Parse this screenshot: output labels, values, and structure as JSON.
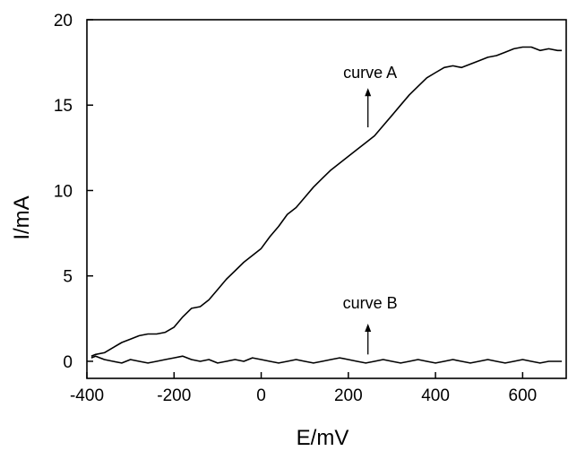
{
  "chart_data": {
    "type": "line",
    "title": "",
    "xlabel": "E/mV",
    "ylabel": "I/mA",
    "xlim": [
      -400,
      700
    ],
    "ylim": [
      -1,
      20
    ],
    "xticks": [
      -400,
      -200,
      0,
      200,
      400,
      600
    ],
    "yticks": [
      0,
      5,
      10,
      15,
      20
    ],
    "grid": false,
    "legend": "none",
    "series": [
      {
        "x": [
          -390,
          -380,
          -360,
          -340,
          -320,
          -300,
          -280,
          -260,
          -240,
          -220,
          -200,
          -180,
          -160,
          -140,
          -120,
          -100,
          -80,
          -60,
          -40,
          -20,
          0,
          20,
          40,
          60,
          80,
          100,
          120,
          140,
          160,
          180,
          200,
          220,
          240,
          260,
          280,
          300,
          320,
          340,
          360,
          380,
          400,
          420,
          440,
          460,
          480,
          500,
          520,
          540,
          560,
          580,
          600,
          620,
          640,
          660,
          680,
          690
        ],
        "y": [
          0.3,
          0.4,
          0.5,
          0.8,
          1.1,
          1.3,
          1.5,
          1.6,
          1.6,
          1.7,
          2.0,
          2.6,
          3.1,
          3.2,
          3.6,
          4.2,
          4.8,
          5.3,
          5.8,
          6.2,
          6.6,
          7.3,
          7.9,
          8.6,
          9.0,
          9.6,
          10.2,
          10.7,
          11.2,
          11.6,
          12.0,
          12.4,
          12.8,
          13.2,
          13.8,
          14.4,
          15.0,
          15.6,
          16.1,
          16.6,
          16.9,
          17.2,
          17.3,
          17.2,
          17.4,
          17.6,
          17.8,
          17.9,
          18.1,
          18.3,
          18.4,
          18.4,
          18.2,
          18.3,
          18.2,
          18.2
        ]
      },
      {
        "x": [
          -390,
          -380,
          -360,
          -340,
          -320,
          -300,
          -280,
          -260,
          -240,
          -220,
          -200,
          -180,
          -160,
          -140,
          -120,
          -100,
          -80,
          -60,
          -40,
          -20,
          0,
          20,
          40,
          60,
          80,
          100,
          120,
          140,
          160,
          180,
          200,
          220,
          240,
          260,
          280,
          300,
          320,
          340,
          360,
          380,
          400,
          420,
          440,
          460,
          480,
          500,
          520,
          540,
          560,
          580,
          600,
          620,
          640,
          660,
          680,
          690
        ],
        "y": [
          0.2,
          0.3,
          0.1,
          0.0,
          -0.1,
          0.1,
          0.0,
          -0.1,
          0.0,
          0.1,
          0.2,
          0.3,
          0.1,
          0.0,
          0.1,
          -0.1,
          0.0,
          0.1,
          0.0,
          0.2,
          0.1,
          0.0,
          -0.1,
          0.0,
          0.1,
          0.0,
          -0.1,
          0.0,
          0.1,
          0.2,
          0.1,
          0.0,
          -0.1,
          0.0,
          0.1,
          0.0,
          -0.1,
          0.0,
          0.1,
          0.0,
          -0.1,
          0.0,
          0.1,
          0.0,
          -0.1,
          0.0,
          0.1,
          0.0,
          -0.1,
          0.0,
          0.1,
          0.0,
          -0.1,
          0.0,
          0.0,
          0.0
        ]
      }
    ],
    "annotations": [
      {
        "text": "curve A",
        "x": 250,
        "y": 16.6,
        "arrow_from": [
          245,
          13.7
        ],
        "arrow_to": [
          245,
          16.0
        ]
      },
      {
        "text": "curve B",
        "x": 250,
        "y": 3.1,
        "arrow_from": [
          245,
          0.4
        ],
        "arrow_to": [
          245,
          2.2
        ]
      }
    ]
  }
}
